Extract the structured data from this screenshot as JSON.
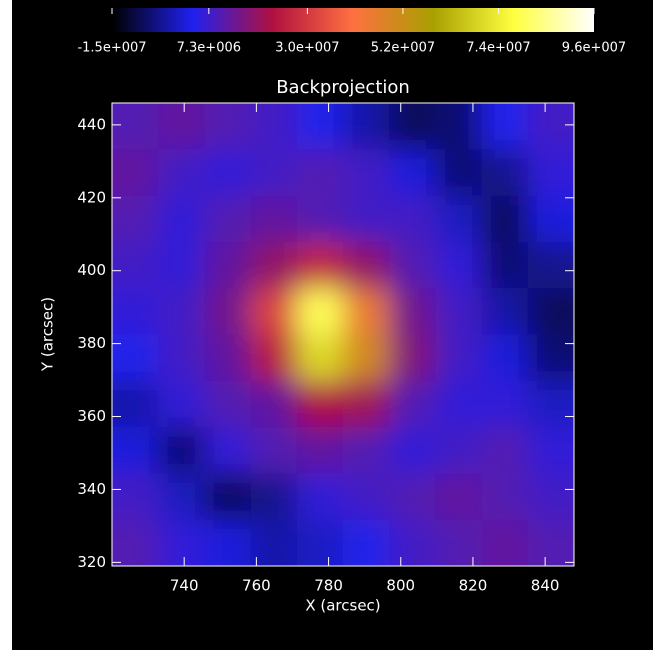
{
  "chart_data": {
    "type": "heatmap",
    "title": "Backprojection",
    "x_label": "X (arcsec)",
    "y_label": "Y (arcsec)",
    "xlim": [
      720,
      848
    ],
    "ylim": [
      319,
      446
    ],
    "xticks": [
      740,
      760,
      780,
      800,
      820,
      840
    ],
    "yticks": [
      320,
      340,
      360,
      380,
      400,
      420,
      440
    ],
    "zlim": [
      -15000000,
      96000000
    ],
    "colorbar_ticks": [
      {
        "value": -15000000,
        "label": "-1.5e+007"
      },
      {
        "value": 7300000,
        "label": "7.3e+006"
      },
      {
        "value": 30000000,
        "label": "3.0e+007"
      },
      {
        "value": 52000000,
        "label": "5.2e+007"
      },
      {
        "value": 74000000,
        "label": "7.4e+007"
      },
      {
        "value": 96000000,
        "label": "9.6e+007"
      }
    ],
    "colormap": [
      "#000000",
      "#2020f0",
      "#b01040",
      "#ff7040",
      "#a8a000",
      "#ffff40",
      "#ffffff"
    ],
    "z": [
      [
        10000000,
        12000000,
        10000000,
        8000000,
        4000000,
        -2000000,
        -8000000,
        -6000000,
        4000000,
        8000000
      ],
      [
        12000000,
        8000000,
        6000000,
        8000000,
        10000000,
        8000000,
        2000000,
        -6000000,
        -4000000,
        6000000
      ],
      [
        10000000,
        6000000,
        10000000,
        12000000,
        10000000,
        8000000,
        8000000,
        0,
        -8000000,
        2000000
      ],
      [
        8000000,
        6000000,
        12000000,
        18000000,
        26000000,
        18000000,
        10000000,
        6000000,
        -6000000,
        -4000000
      ],
      [
        6000000,
        8000000,
        14000000,
        32000000,
        80000000,
        45000000,
        14000000,
        8000000,
        -2000000,
        -8000000
      ],
      [
        4000000,
        8000000,
        12000000,
        24000000,
        70000000,
        50000000,
        16000000,
        8000000,
        2000000,
        -6000000
      ],
      [
        -2000000,
        6000000,
        10000000,
        12000000,
        22000000,
        20000000,
        10000000,
        6000000,
        6000000,
        0
      ],
      [
        2000000,
        -6000000,
        6000000,
        10000000,
        12000000,
        10000000,
        6000000,
        8000000,
        10000000,
        6000000
      ],
      [
        8000000,
        0,
        -8000000,
        -4000000,
        6000000,
        8000000,
        10000000,
        12000000,
        10000000,
        8000000
      ],
      [
        10000000,
        6000000,
        2000000,
        -2000000,
        0,
        4000000,
        8000000,
        10000000,
        12000000,
        10000000
      ]
    ]
  }
}
